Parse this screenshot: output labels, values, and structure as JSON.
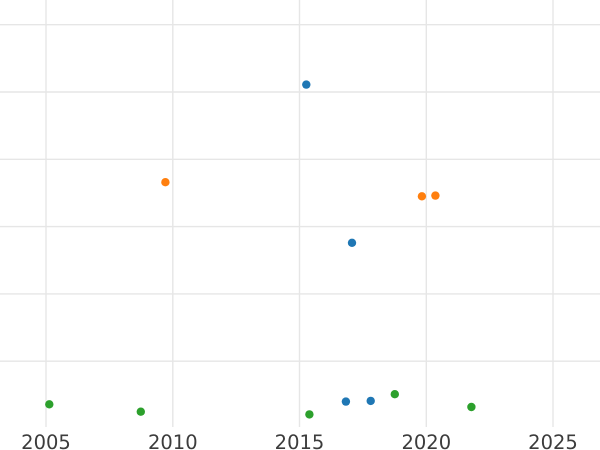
{
  "chart_data": {
    "type": "scatter",
    "title": "",
    "xlabel": "",
    "ylabel": "",
    "x_tick_labels": [
      "2005",
      "2010",
      "2015",
      "2020",
      "2025"
    ],
    "x_tick_years": [
      2005,
      2010,
      2015,
      2020,
      2025
    ],
    "xlim_visible": [
      2003.2,
      2027.1
    ],
    "y_axis_note": "y tick labels cropped out of view; values estimated in gridline units (1 unit = one horizontal gridline spacing, 0 = bottom edge of plot)",
    "y_gridline_units": [
      1,
      2,
      3,
      4,
      5,
      6
    ],
    "grid": true,
    "legend": false,
    "colors": {
      "blue": "#1f77b4",
      "orange": "#ff7f0e",
      "green": "#2ca02c",
      "gridline": "#e6e6e6",
      "tick_label": "#3c3c3c",
      "background": "#ffffff"
    },
    "series": [
      {
        "name": "blue-series",
        "color": "#1f77b4",
        "points": [
          {
            "x": 2015.27,
            "y": 5.11
          },
          {
            "x": 2017.07,
            "y": 2.76
          },
          {
            "x": 2016.83,
            "y": 0.4
          },
          {
            "x": 2017.81,
            "y": 0.41
          }
        ]
      },
      {
        "name": "orange-series",
        "color": "#ff7f0e",
        "points": [
          {
            "x": 2009.71,
            "y": 3.66
          },
          {
            "x": 2019.83,
            "y": 3.45
          },
          {
            "x": 2020.36,
            "y": 3.46
          }
        ]
      },
      {
        "name": "green-series",
        "color": "#2ca02c",
        "points": [
          {
            "x": 2005.13,
            "y": 0.36
          },
          {
            "x": 2008.74,
            "y": 0.25
          },
          {
            "x": 2015.39,
            "y": 0.21
          },
          {
            "x": 2018.76,
            "y": 0.51
          },
          {
            "x": 2021.78,
            "y": 0.32
          }
        ]
      }
    ]
  }
}
